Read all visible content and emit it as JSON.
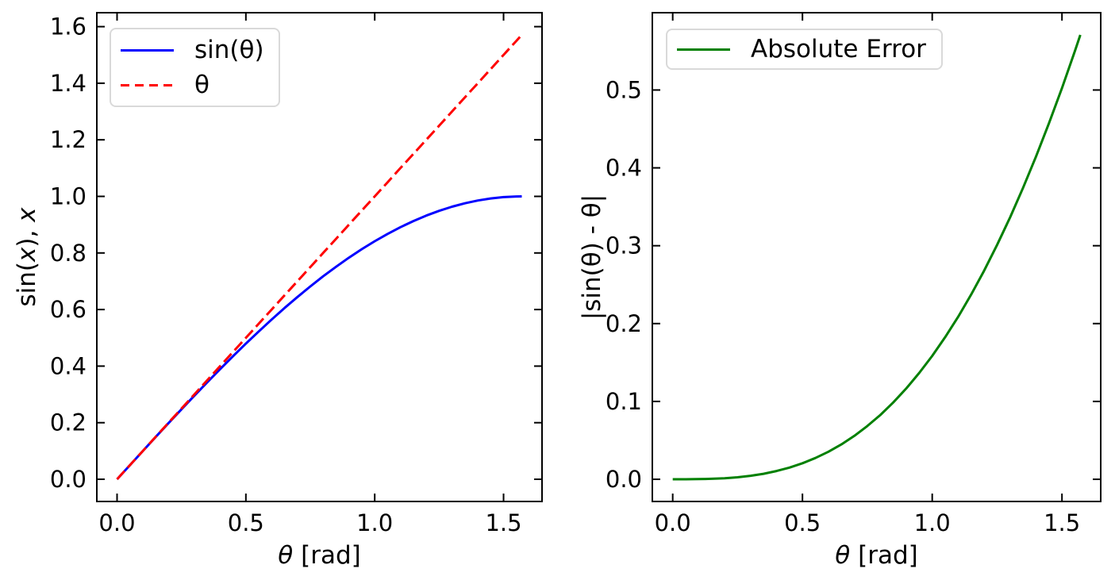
{
  "chart_data": [
    {
      "type": "line",
      "title": "",
      "xlabel_segments": [
        {
          "t": "θ",
          "italic": true
        },
        {
          "t": " [rad]",
          "italic": false
        }
      ],
      "ylabel_segments": [
        {
          "t": "sin(",
          "italic": false
        },
        {
          "t": "x",
          "italic": true
        },
        {
          "t": "), ",
          "italic": false
        },
        {
          "t": "x",
          "italic": true
        }
      ],
      "xlim": [
        -0.0785,
        1.6493
      ],
      "ylim": [
        -0.0785,
        1.6493
      ],
      "xticks": [
        0.0,
        0.5,
        1.0,
        1.5
      ],
      "yticks": [
        0.0,
        0.2,
        0.4,
        0.6,
        0.8,
        1.0,
        1.2,
        1.4,
        1.6
      ],
      "tick_decimals": 1,
      "grid": false,
      "legend_position": "upper-left",
      "x": [
        0,
        0.05,
        0.1,
        0.15,
        0.2,
        0.25,
        0.3,
        0.35,
        0.4,
        0.45,
        0.5,
        0.55,
        0.6,
        0.65,
        0.7,
        0.75,
        0.8,
        0.85,
        0.9,
        0.95,
        1.0,
        1.05,
        1.1,
        1.15,
        1.2,
        1.25,
        1.3,
        1.35,
        1.4,
        1.45,
        1.5,
        1.55,
        1.5708
      ],
      "series": [
        {
          "name": "sin(θ)",
          "color": "#0000ff",
          "line_style": "solid",
          "values": [
            0,
            0.05,
            0.0998,
            0.1494,
            0.1987,
            0.2474,
            0.2955,
            0.3429,
            0.3894,
            0.435,
            0.4794,
            0.5227,
            0.5646,
            0.6052,
            0.6442,
            0.6816,
            0.7174,
            0.7513,
            0.7833,
            0.8134,
            0.8415,
            0.8674,
            0.8912,
            0.9128,
            0.932,
            0.949,
            0.9636,
            0.9757,
            0.9854,
            0.9927,
            0.9975,
            0.9998,
            1.0
          ]
        },
        {
          "name": "θ",
          "color": "#ff0000",
          "line_style": "dashed",
          "values": [
            0,
            0.05,
            0.1,
            0.15,
            0.2,
            0.25,
            0.3,
            0.35,
            0.4,
            0.45,
            0.5,
            0.55,
            0.6,
            0.65,
            0.7,
            0.75,
            0.8,
            0.85,
            0.9,
            0.95,
            1.0,
            1.05,
            1.1,
            1.15,
            1.2,
            1.25,
            1.3,
            1.35,
            1.4,
            1.45,
            1.5,
            1.55,
            1.5708
          ]
        }
      ]
    },
    {
      "type": "line",
      "title": "",
      "xlabel_segments": [
        {
          "t": "θ",
          "italic": true
        },
        {
          "t": " [rad]",
          "italic": false
        }
      ],
      "ylabel_segments": [
        {
          "t": "|sin(θ) - θ|",
          "italic": false
        }
      ],
      "xlim": [
        -0.0785,
        1.6493
      ],
      "ylim": [
        -0.0285,
        0.5993
      ],
      "xticks": [
        0.0,
        0.5,
        1.0,
        1.5
      ],
      "yticks": [
        0.0,
        0.1,
        0.2,
        0.3,
        0.4,
        0.5
      ],
      "tick_decimals": 1,
      "grid": false,
      "legend_position": "upper-left",
      "x": [
        0,
        0.05,
        0.1,
        0.15,
        0.2,
        0.25,
        0.3,
        0.35,
        0.4,
        0.45,
        0.5,
        0.55,
        0.6,
        0.65,
        0.7,
        0.75,
        0.8,
        0.85,
        0.9,
        0.95,
        1.0,
        1.05,
        1.1,
        1.15,
        1.2,
        1.25,
        1.3,
        1.35,
        1.4,
        1.45,
        1.5,
        1.55,
        1.5708
      ],
      "series": [
        {
          "name": "Absolute Error",
          "color": "#008000",
          "line_style": "solid",
          "values": [
            0,
            2.08e-05,
            0.0002,
            0.0006,
            0.0013,
            0.0026,
            0.0045,
            0.0071,
            0.0106,
            0.015,
            0.0206,
            0.0273,
            0.0354,
            0.0448,
            0.0558,
            0.0684,
            0.0826,
            0.0987,
            0.1167,
            0.1366,
            0.1585,
            0.1826,
            0.2088,
            0.2372,
            0.268,
            0.301,
            0.3364,
            0.3743,
            0.4146,
            0.4573,
            0.5025,
            0.5502,
            0.5708
          ]
        }
      ]
    }
  ]
}
